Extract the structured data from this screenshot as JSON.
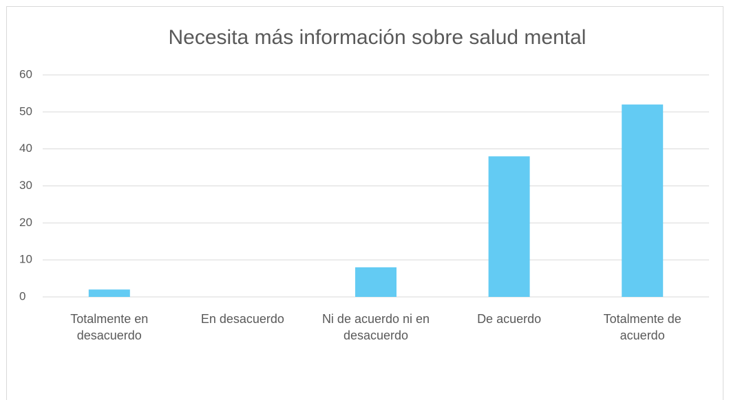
{
  "chart_data": {
    "type": "bar",
    "title": "Necesita más información sobre salud mental",
    "categories": [
      "Totalmente en desacuerdo",
      "En desacuerdo",
      "Ni de acuerdo ni en desacuerdo",
      "De acuerdo",
      "Totalmente de acuerdo"
    ],
    "values": [
      2,
      0,
      8,
      38,
      52
    ],
    "color": "#63cbf3",
    "ylim": [
      0,
      60
    ],
    "yticks": [
      0,
      10,
      20,
      30,
      40,
      50,
      60
    ],
    "grid": true
  }
}
